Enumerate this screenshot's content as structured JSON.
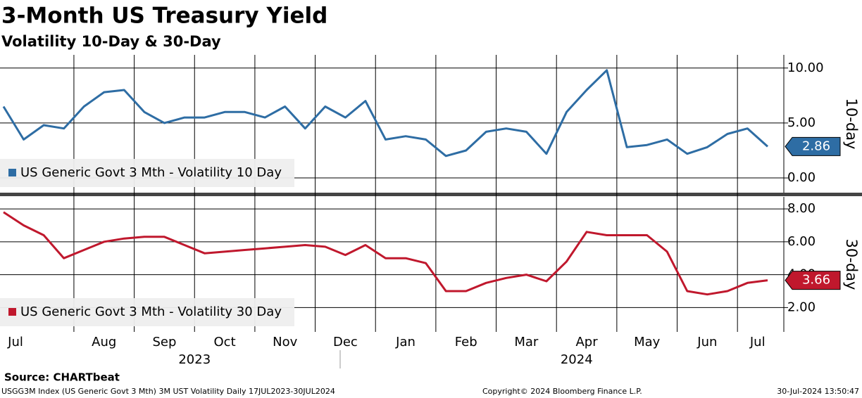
{
  "header": {
    "title": "3-Month US Treasury Yield",
    "subtitle": "Volatility 10-Day & 30-Day"
  },
  "footer": {
    "source": "Source: CHARTbeat",
    "description": "USGG3M Index (US Generic Govt 3 Mth) 3M UST Volatility  Daily 17JUL2023-30JUL2024",
    "copyright": "Copyright© 2024 Bloomberg Finance L.P.",
    "timestamp": "30-Jul-2024 13:50:47"
  },
  "chart_data": [
    {
      "type": "line",
      "y_label": "10-day",
      "series": [
        {
          "name": "US Generic Govt 3 Mth - Volatility 10 Day",
          "color": "#2e6da4",
          "values": [
            6.5,
            3.5,
            4.8,
            4.5,
            6.5,
            7.8,
            8.0,
            6.0,
            5.0,
            5.5,
            5.5,
            6.0,
            6.0,
            5.5,
            6.5,
            4.5,
            6.5,
            5.5,
            7.0,
            3.5,
            3.8,
            3.5,
            2.0,
            2.5,
            4.2,
            4.5,
            4.2,
            2.2,
            6.0,
            8.0,
            9.8,
            2.8,
            3.0,
            3.5,
            2.2,
            2.8,
            4.0,
            4.5,
            2.86
          ]
        }
      ],
      "ylim": [
        -1.34,
        11.2
      ],
      "yticks": [
        {
          "value": 0,
          "label": "0.00"
        },
        {
          "value": 5,
          "label": "5.00"
        },
        {
          "value": 10,
          "label": "10.00"
        }
      ],
      "grid": true
    },
    {
      "type": "line",
      "y_label": "30-day",
      "categories": [
        "Jul",
        null,
        null,
        null,
        "Aug",
        null,
        null,
        "Sep",
        null,
        null,
        "Oct",
        null,
        null,
        "Nov",
        null,
        null,
        "Dec",
        null,
        null,
        "Jan",
        null,
        null,
        "Feb",
        null,
        null,
        "Mar",
        null,
        null,
        "Apr",
        null,
        null,
        "May",
        null,
        null,
        "Jun",
        null,
        null,
        "Jul",
        null
      ],
      "x_group_labels": [
        "2023",
        "2024"
      ],
      "series": [
        {
          "name": "US Generic Govt 3 Mth - Volatility 30 Day",
          "color": "#c0182d",
          "values": [
            7.8,
            7.0,
            6.4,
            5.0,
            5.5,
            6.0,
            6.2,
            6.3,
            6.3,
            5.8,
            5.3,
            5.4,
            5.5,
            5.6,
            5.7,
            5.8,
            5.7,
            5.2,
            5.8,
            5.0,
            5.0,
            4.7,
            3.0,
            3.0,
            3.5,
            3.8,
            4.0,
            3.6,
            4.8,
            6.6,
            6.4,
            6.4,
            6.4,
            5.4,
            3.0,
            2.8,
            3.0,
            3.5,
            3.66
          ]
        }
      ],
      "ylim": [
        0.52,
        8.73
      ],
      "yticks": [
        {
          "value": 2,
          "label": "2.00"
        },
        {
          "value": 4,
          "label": "4.00"
        },
        {
          "value": 6,
          "label": "6.00"
        },
        {
          "value": 8,
          "label": "8.00"
        }
      ],
      "grid": true
    }
  ]
}
